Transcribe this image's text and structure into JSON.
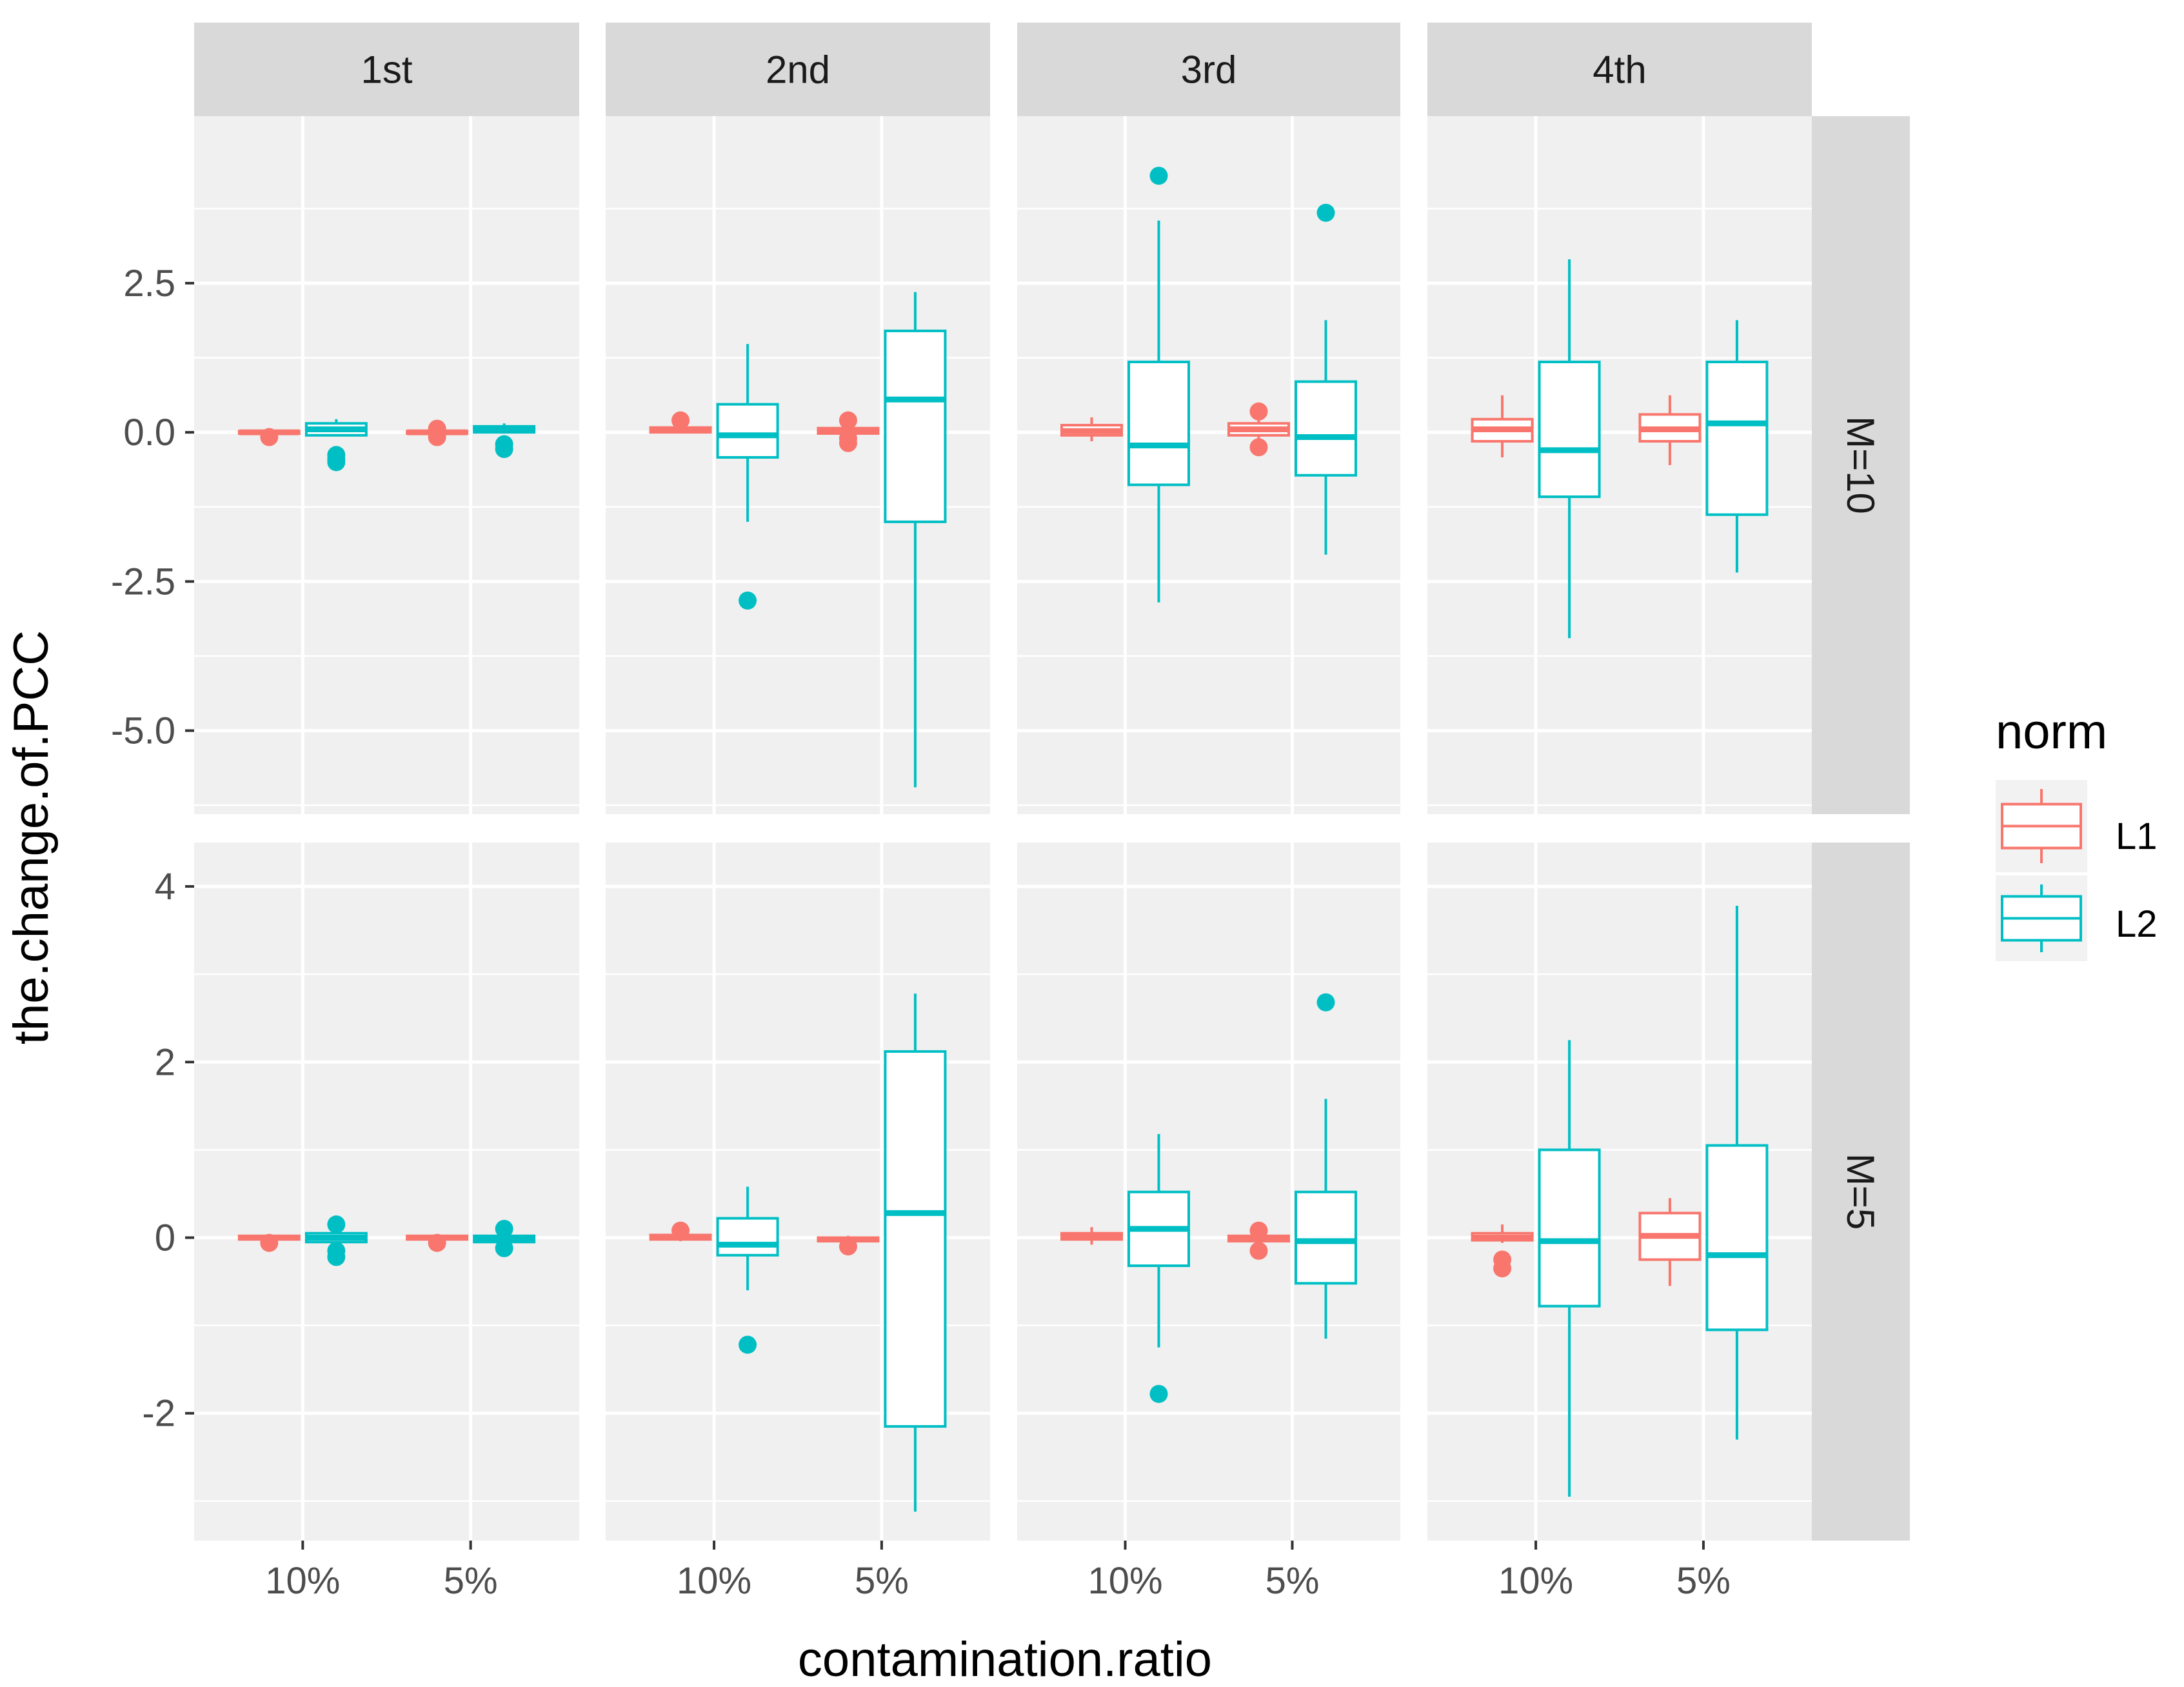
{
  "chart_data": {
    "type": "boxplot",
    "x_title": "contamination.ratio",
    "y_title": "the.change.of.PCC",
    "col_facets": [
      "1st",
      "2nd",
      "3rd",
      "4th"
    ],
    "row_facets": [
      "M=10",
      "M=5"
    ],
    "categories": [
      "10%",
      "5%"
    ],
    "legend": {
      "title": "norm",
      "entries": [
        {
          "name": "L1",
          "color": "#F8766D"
        },
        {
          "name": "L2",
          "color": "#00BFC4"
        }
      ]
    },
    "rows": [
      {
        "label": "M=10",
        "ylim": [
          -6.4,
          5.3
        ],
        "ticks": [
          2.5,
          0.0,
          -2.5,
          -5.0
        ],
        "tick_labels": [
          "2.5",
          "0.0",
          "-2.5",
          "-5.0"
        ],
        "minor_ticks": [
          3.75,
          1.25,
          -1.25,
          -3.75,
          -6.25
        ]
      },
      {
        "label": "M=5",
        "ylim": [
          -3.45,
          4.5
        ],
        "ticks": [
          4,
          2,
          0,
          -2
        ],
        "tick_labels": [
          "4",
          "2",
          "0",
          "-2"
        ],
        "minor_ticks": [
          3,
          1,
          -1,
          -3
        ]
      }
    ],
    "panels": [
      {
        "row": "M=10",
        "col": "1st",
        "boxes": [
          {
            "category": "10%",
            "norm": "L1",
            "q1": -0.02,
            "median": 0.0,
            "q3": 0.02,
            "lower": -0.05,
            "upper": 0.04,
            "outliers": [
              -0.08
            ]
          },
          {
            "category": "10%",
            "norm": "L2",
            "q1": -0.05,
            "median": 0.05,
            "q3": 0.15,
            "lower": -0.05,
            "upper": 0.22,
            "outliers": [
              -0.38,
              -0.45,
              -0.5
            ]
          },
          {
            "category": "5%",
            "norm": "L1",
            "q1": -0.02,
            "median": 0.0,
            "q3": 0.02,
            "lower": -0.06,
            "upper": 0.04,
            "outliers": [
              0.06,
              -0.08
            ]
          },
          {
            "category": "5%",
            "norm": "L2",
            "q1": 0.0,
            "median": 0.05,
            "q3": 0.1,
            "lower": -0.02,
            "upper": 0.15,
            "outliers": [
              -0.2,
              -0.28
            ]
          }
        ]
      },
      {
        "row": "M=10",
        "col": "2nd",
        "boxes": [
          {
            "category": "10%",
            "norm": "L1",
            "q1": 0.0,
            "median": 0.05,
            "q3": 0.08,
            "lower": -0.02,
            "upper": 0.12,
            "outliers": [
              0.2
            ]
          },
          {
            "category": "10%",
            "norm": "L2",
            "q1": -0.42,
            "median": -0.05,
            "q3": 0.47,
            "lower": -1.5,
            "upper": 1.48,
            "outliers": [
              -2.82
            ]
          },
          {
            "category": "5%",
            "norm": "L1",
            "q1": -0.02,
            "median": 0.03,
            "q3": 0.07,
            "lower": -0.07,
            "upper": 0.1,
            "outliers": [
              0.2,
              -0.1,
              -0.18
            ]
          },
          {
            "category": "5%",
            "norm": "L2",
            "q1": -1.5,
            "median": 0.55,
            "q3": 1.7,
            "lower": -5.95,
            "upper": 2.35,
            "outliers": []
          }
        ]
      },
      {
        "row": "M=10",
        "col": "3rd",
        "boxes": [
          {
            "category": "10%",
            "norm": "L1",
            "q1": -0.05,
            "median": 0.02,
            "q3": 0.12,
            "lower": -0.15,
            "upper": 0.25,
            "outliers": []
          },
          {
            "category": "10%",
            "norm": "L2",
            "q1": -0.88,
            "median": -0.22,
            "q3": 1.18,
            "lower": -2.85,
            "upper": 3.55,
            "outliers": [
              4.3
            ]
          },
          {
            "category": "5%",
            "norm": "L1",
            "q1": -0.05,
            "median": 0.05,
            "q3": 0.15,
            "lower": -0.12,
            "upper": 0.25,
            "outliers": [
              0.35,
              -0.25
            ]
          },
          {
            "category": "5%",
            "norm": "L2",
            "q1": -0.72,
            "median": -0.08,
            "q3": 0.85,
            "lower": -2.05,
            "upper": 1.88,
            "outliers": [
              3.68
            ]
          }
        ]
      },
      {
        "row": "M=10",
        "col": "4th",
        "boxes": [
          {
            "category": "10%",
            "norm": "L1",
            "q1": -0.15,
            "median": 0.05,
            "q3": 0.22,
            "lower": -0.42,
            "upper": 0.62,
            "outliers": []
          },
          {
            "category": "10%",
            "norm": "L2",
            "q1": -1.08,
            "median": -0.3,
            "q3": 1.18,
            "lower": -3.45,
            "upper": 2.9,
            "outliers": []
          },
          {
            "category": "5%",
            "norm": "L1",
            "q1": -0.15,
            "median": 0.05,
            "q3": 0.3,
            "lower": -0.55,
            "upper": 0.62,
            "outliers": []
          },
          {
            "category": "5%",
            "norm": "L2",
            "q1": -1.38,
            "median": 0.15,
            "q3": 1.18,
            "lower": -2.35,
            "upper": 1.88,
            "outliers": []
          }
        ]
      },
      {
        "row": "M=5",
        "col": "1st",
        "boxes": [
          {
            "category": "10%",
            "norm": "L1",
            "q1": -0.02,
            "median": 0.0,
            "q3": 0.02,
            "lower": -0.04,
            "upper": 0.03,
            "outliers": [
              -0.06
            ]
          },
          {
            "category": "10%",
            "norm": "L2",
            "q1": -0.05,
            "median": 0.0,
            "q3": 0.05,
            "lower": -0.08,
            "upper": 0.08,
            "outliers": [
              0.15,
              -0.15,
              -0.22
            ]
          },
          {
            "category": "5%",
            "norm": "L1",
            "q1": -0.02,
            "median": 0.0,
            "q3": 0.02,
            "lower": -0.04,
            "upper": 0.03,
            "outliers": [
              -0.06
            ]
          },
          {
            "category": "5%",
            "norm": "L2",
            "q1": -0.05,
            "median": -0.02,
            "q3": 0.02,
            "lower": -0.08,
            "upper": 0.06,
            "outliers": [
              0.1,
              -0.12
            ]
          }
        ]
      },
      {
        "row": "M=5",
        "col": "2nd",
        "boxes": [
          {
            "category": "10%",
            "norm": "L1",
            "q1": -0.02,
            "median": 0.0,
            "q3": 0.03,
            "lower": -0.04,
            "upper": 0.06,
            "outliers": [
              0.08
            ]
          },
          {
            "category": "10%",
            "norm": "L2",
            "q1": -0.2,
            "median": -0.08,
            "q3": 0.22,
            "lower": -0.6,
            "upper": 0.58,
            "outliers": [
              -1.22
            ]
          },
          {
            "category": "5%",
            "norm": "L1",
            "q1": -0.04,
            "median": -0.02,
            "q3": 0.0,
            "lower": -0.06,
            "upper": 0.02,
            "outliers": [
              -0.1
            ]
          },
          {
            "category": "5%",
            "norm": "L2",
            "q1": -2.15,
            "median": 0.28,
            "q3": 2.12,
            "lower": -3.12,
            "upper": 2.78,
            "outliers": []
          }
        ]
      },
      {
        "row": "M=5",
        "col": "3rd",
        "boxes": [
          {
            "category": "10%",
            "norm": "L1",
            "q1": -0.02,
            "median": 0.02,
            "q3": 0.05,
            "lower": -0.08,
            "upper": 0.12,
            "outliers": []
          },
          {
            "category": "10%",
            "norm": "L2",
            "q1": -0.32,
            "median": 0.1,
            "q3": 0.52,
            "lower": -1.25,
            "upper": 1.18,
            "outliers": [
              -1.78
            ]
          },
          {
            "category": "5%",
            "norm": "L1",
            "q1": -0.04,
            "median": -0.01,
            "q3": 0.02,
            "lower": -0.06,
            "upper": 0.04,
            "outliers": [
              0.08,
              -0.15
            ]
          },
          {
            "category": "5%",
            "norm": "L2",
            "q1": -0.52,
            "median": -0.04,
            "q3": 0.52,
            "lower": -1.15,
            "upper": 1.58,
            "outliers": [
              2.68
            ]
          }
        ]
      },
      {
        "row": "M=5",
        "col": "4th",
        "boxes": [
          {
            "category": "10%",
            "norm": "L1",
            "q1": -0.03,
            "median": 0.0,
            "q3": 0.05,
            "lower": -0.06,
            "upper": 0.15,
            "outliers": [
              -0.25,
              -0.35
            ]
          },
          {
            "category": "10%",
            "norm": "L2",
            "q1": -0.78,
            "median": -0.04,
            "q3": 1.0,
            "lower": -2.95,
            "upper": 2.25,
            "outliers": []
          },
          {
            "category": "5%",
            "norm": "L1",
            "q1": -0.25,
            "median": 0.02,
            "q3": 0.28,
            "lower": -0.55,
            "upper": 0.45,
            "outliers": []
          },
          {
            "category": "5%",
            "norm": "L2",
            "q1": -1.05,
            "median": -0.2,
            "q3": 1.05,
            "lower": -2.3,
            "upper": 3.78,
            "outliers": []
          }
        ]
      }
    ]
  }
}
